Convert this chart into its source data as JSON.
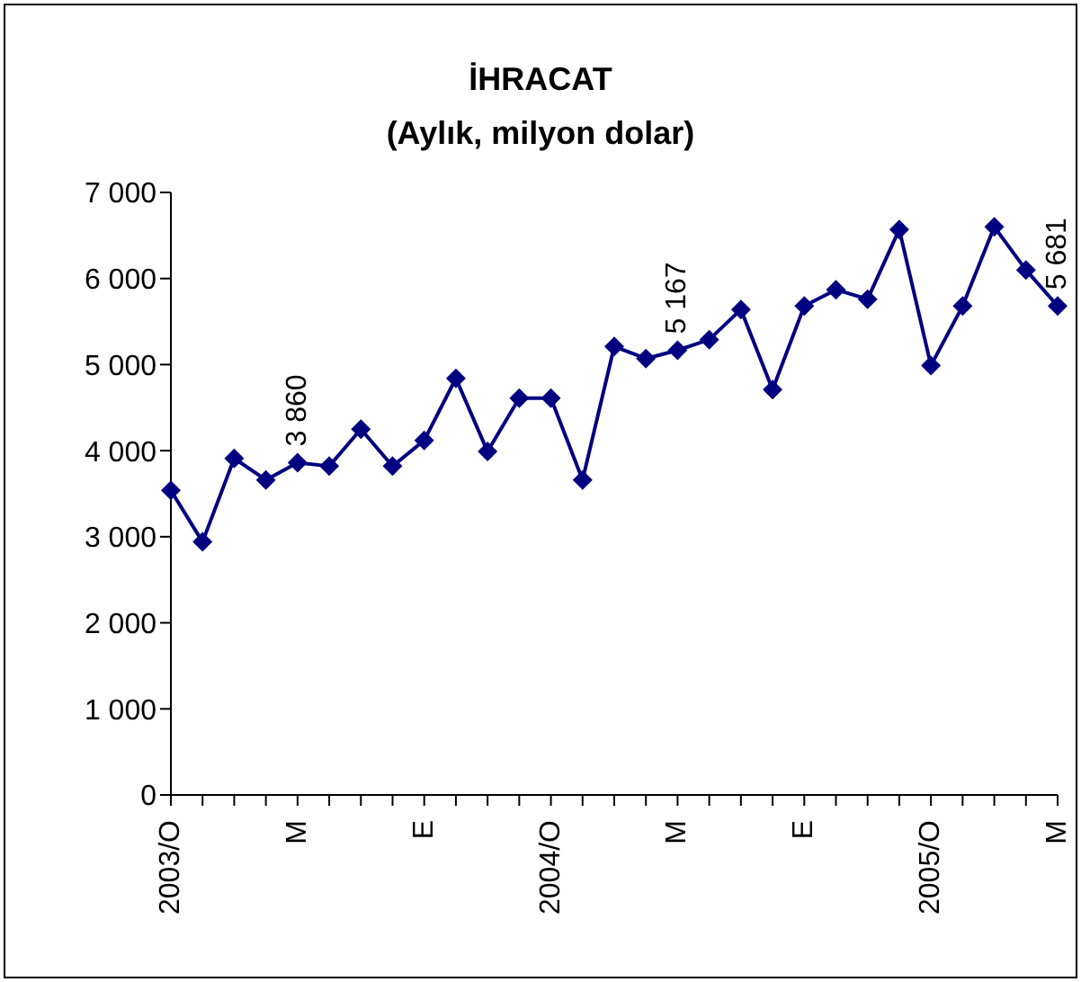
{
  "chart_data": {
    "type": "line",
    "title": "İHRACAT",
    "subtitle": "(Aylık, milyon dolar)",
    "categories": [
      "2003/O",
      null,
      null,
      null,
      "M",
      null,
      null,
      null,
      "E",
      null,
      null,
      null,
      "2004/O",
      null,
      null,
      null,
      "M",
      null,
      null,
      null,
      "E",
      null,
      null,
      null,
      "2005/O",
      null,
      null,
      null,
      "M"
    ],
    "series": [
      {
        "color": "#000080",
        "values": [
          3540,
          2940,
          3910,
          3660,
          3860,
          3820,
          4250,
          3820,
          4120,
          4840,
          3990,
          4610,
          4610,
          3660,
          5210,
          5070,
          5167,
          5290,
          5640,
          4710,
          5680,
          5870,
          5760,
          6570,
          4990,
          5680,
          6600,
          6100,
          5681
        ],
        "value_labels": [
          null,
          null,
          null,
          null,
          "3 860",
          null,
          null,
          null,
          null,
          null,
          null,
          null,
          null,
          null,
          null,
          null,
          "5 167",
          null,
          null,
          null,
          null,
          null,
          null,
          null,
          null,
          null,
          null,
          null,
          "5 681"
        ]
      }
    ],
    "ylim": [
      0,
      7000
    ],
    "yticks": [
      {
        "value": 0,
        "label": "0"
      },
      {
        "value": 1000,
        "label": "1 000"
      },
      {
        "value": 2000,
        "label": "2 000"
      },
      {
        "value": 3000,
        "label": "3 000"
      },
      {
        "value": 4000,
        "label": "4 000"
      },
      {
        "value": 5000,
        "label": "5 000"
      },
      {
        "value": 6000,
        "label": "6 000"
      },
      {
        "value": 7000,
        "label": "7 000"
      }
    ],
    "grid": false,
    "legend": false,
    "marker": "diamond",
    "line_style": "solid"
  }
}
